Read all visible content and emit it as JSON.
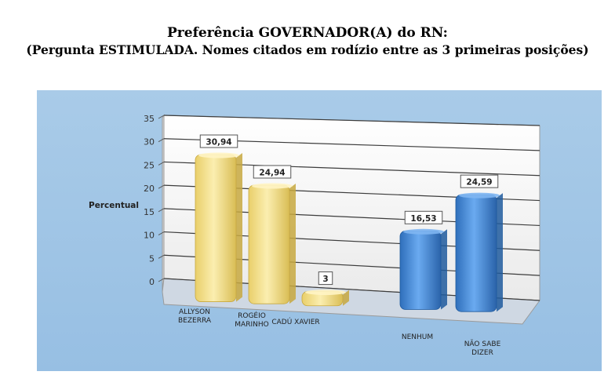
{
  "title": "Preferência GOVERNADOR(A) do RN:",
  "subtitle": "(Pergunta ESTIMULADA. Nomes citados em rodízio entre as 3 primeiras posições)",
  "chart_data": {
    "type": "bar",
    "title": "Preferência GOVERNADOR(A) do RN:",
    "subtitle": "(Pergunta ESTIMULADA. Nomes citados em rodízio entre as 3 primeiras posições)",
    "xlabel": "",
    "ylabel": "Percentual",
    "ylim": [
      0,
      35
    ],
    "yticks": [
      0,
      5,
      10,
      15,
      20,
      25,
      30,
      35
    ],
    "grid": true,
    "legend": "none",
    "categories": [
      [
        "ALLYSON",
        "BEZERRA"
      ],
      [
        "ROGÉIO",
        "MARINHO"
      ],
      [
        "CADÚ XAVIER"
      ],
      [
        "NENHUM"
      ],
      [
        "NÃO SABE",
        "DIZER"
      ]
    ],
    "values": [
      30.94,
      24.94,
      3,
      16.53,
      24.59
    ],
    "value_labels": [
      "30,94",
      "24,94",
      "3",
      "16,53",
      "24,59"
    ],
    "colors": [
      "#f4de8a",
      "#f4de8a",
      "#f4de8a",
      "#4a8fd6",
      "#4a8fd6"
    ]
  }
}
